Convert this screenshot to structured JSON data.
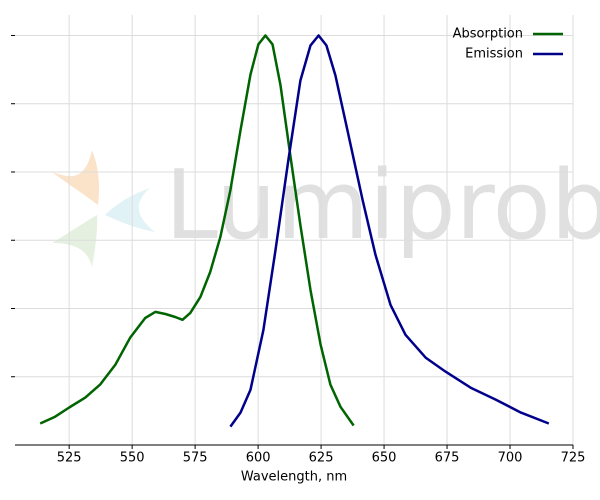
{
  "chart_data": {
    "type": "line",
    "xlabel": "Wavelength, nm",
    "watermark": "Lumiprobe",
    "xlim": [
      503.5,
      725
    ],
    "xticks": [
      525,
      550,
      575,
      600,
      625,
      650,
      675,
      700,
      725
    ],
    "ylim": [
      -0.2,
      1.06
    ],
    "yticks": [
      0,
      0.2,
      0.4,
      0.6,
      0.8,
      1.0
    ],
    "grid": true,
    "legend": "upper right",
    "series": [
      {
        "name": "Absorption",
        "color": "#006400",
        "x": [
          513.5,
          519.4,
          525,
          531.4,
          537.3,
          543.3,
          549.2,
          555.2,
          559.2,
          563.2,
          567.1,
          570,
          573.1,
          577.1,
          581.0,
          585.0,
          589.0,
          593.0,
          597.0,
          600.1,
          602.9,
          605.7,
          608.9,
          612.8,
          616.8,
          620.8,
          624.8,
          628.7,
          632.7,
          637.9
        ],
        "values": [
          -0.137,
          -0.117,
          -0.09,
          -0.061,
          -0.023,
          0.035,
          0.114,
          0.172,
          0.19,
          0.184,
          0.175,
          0.167,
          0.187,
          0.234,
          0.307,
          0.409,
          0.547,
          0.722,
          0.886,
          0.974,
          1.0,
          0.974,
          0.854,
          0.649,
          0.444,
          0.254,
          0.094,
          -0.023,
          -0.088,
          -0.143
        ]
      },
      {
        "name": "Emission",
        "color": "#00008b",
        "x": [
          589.0,
          593.0,
          597.0,
          602.1,
          606.9,
          612.0,
          616.8,
          620.8,
          624.0,
          627.1,
          630.7,
          635.9,
          641.5,
          646.6,
          652.6,
          658.5,
          666.5,
          674.4,
          684.4,
          694.3,
          704.3,
          715.4
        ],
        "values": [
          -0.146,
          -0.105,
          -0.038,
          0.137,
          0.371,
          0.634,
          0.868,
          0.971,
          1.0,
          0.971,
          0.883,
          0.708,
          0.518,
          0.357,
          0.21,
          0.123,
          0.056,
          0.015,
          -0.032,
          -0.067,
          -0.105,
          -0.137
        ]
      }
    ]
  }
}
